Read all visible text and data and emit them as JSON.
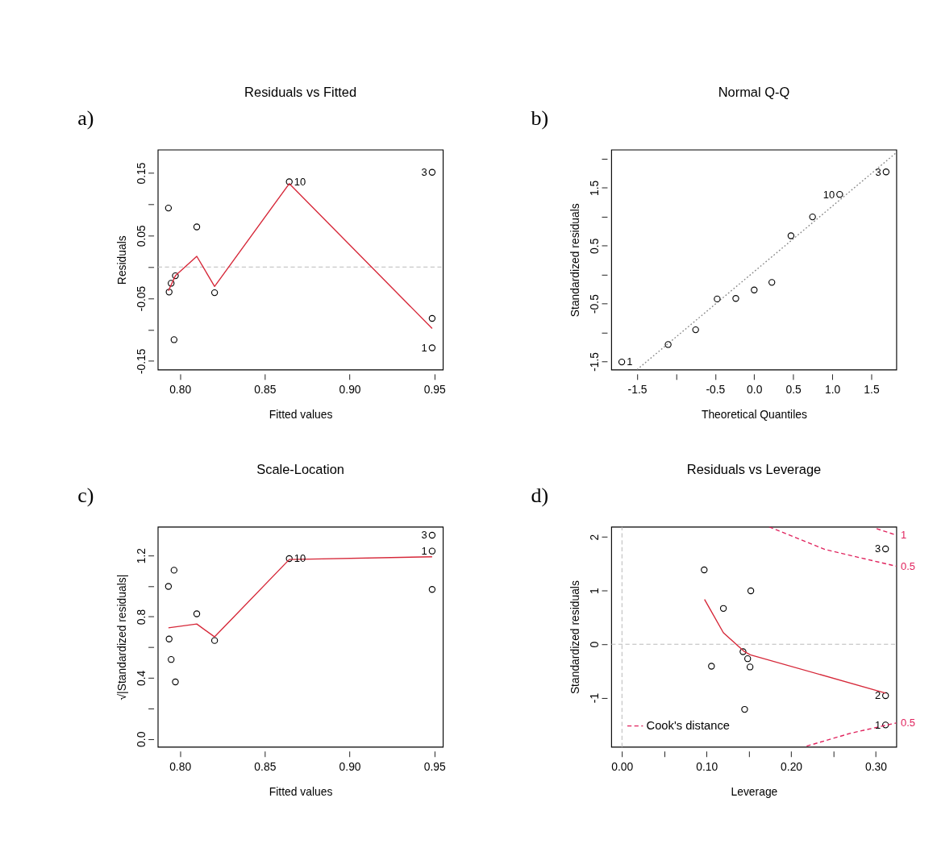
{
  "chart_data": [
    {
      "type": "scatter",
      "title": "Residuals vs Fitted",
      "xlabel": "Fitted values",
      "ylabel": "Residuals",
      "xlim": [
        0.787,
        0.955
      ],
      "ylim": [
        -0.164,
        0.187
      ],
      "xticks": [
        {
          "value": 0.8,
          "label": "0.80"
        },
        0.85,
        {
          "value": 0.9,
          "label": "0.90"
        },
        0.95
      ],
      "yticks": [
        -0.15,
        {
          "value": -0.1,
          "label": null
        },
        -0.05,
        {
          "value": 0,
          "label": null
        },
        0.05,
        {
          "value": 0.1,
          "label": null
        },
        0.15
      ],
      "series": [
        {
          "marker": "circle",
          "color": "#000000",
          "x": [
            0.7932,
            0.8099,
            0.8644,
            0.9486,
            0.7973,
            0.7948,
            0.7936,
            0.8204,
            0.9486,
            0.7965,
            0.9486
          ],
          "values": [
            0.094,
            0.064,
            0.136,
            0.151,
            -0.014,
            -0.026,
            -0.04,
            -0.041,
            -0.082,
            -0.116,
            -0.129
          ]
        },
        {
          "type": "line",
          "line_style": "solid",
          "color": "#d62839",
          "x": [
            0.7932,
            0.7973,
            0.8099,
            0.8204,
            0.8644,
            0.9486
          ],
          "values": [
            -0.038,
            -0.014,
            0.017,
            -0.031,
            0.133,
            -0.098
          ]
        }
      ],
      "ref_lines": [
        {
          "axis": "y",
          "value": 0,
          "color": "#bbbbbb",
          "line_style": "dashed"
        }
      ],
      "annotations": [
        "a)",
        {
          "text": "10",
          "x": 0.8644,
          "y": 0.136
        },
        {
          "text": "3",
          "x": 0.9486,
          "y": 0.151
        },
        {
          "text": "1",
          "x": 0.9486,
          "y": -0.129
        }
      ]
    },
    {
      "type": "scatter",
      "title": "Normal Q-Q",
      "xlabel": "Theoretical Quantiles",
      "ylabel": "Standardized residuals",
      "xlim": [
        -1.829,
        1.822
      ],
      "ylim": [
        -1.643,
        2.157
      ],
      "xticks": [
        -1.5,
        {
          "value": -1.0,
          "label": null
        },
        -0.5,
        {
          "value": 0.0,
          "label": "0.0"
        },
        0.5,
        {
          "value": 1.0,
          "label": "1.0"
        },
        1.5
      ],
      "yticks": [
        -1.5,
        {
          "value": -1.0,
          "label": null
        },
        -0.5,
        {
          "value": 0,
          "label": null
        },
        0.5,
        {
          "value": 1.0,
          "label": null
        },
        1.5,
        {
          "value": 2.0,
          "label": null
        }
      ],
      "series": [
        {
          "type": "line",
          "line_style": "dotted",
          "color": "#888888",
          "x": [
            -1.5,
            1.822
          ],
          "values": [
            -1.64,
            2.11
          ]
        },
        {
          "marker": "circle",
          "color": "#000000",
          "x": [
            -1.696,
            -1.102,
            -0.75,
            -0.474,
            -0.236,
            0.0,
            0.226,
            0.471,
            0.747,
            1.095,
            1.689
          ],
          "values": [
            -1.509,
            -1.207,
            -0.952,
            -0.42,
            -0.411,
            -0.264,
            -0.134,
            0.671,
            0.997,
            1.386,
            1.775
          ]
        }
      ],
      "annotations": [
        "b)",
        {
          "text": "1",
          "x": -1.696,
          "y": -1.509
        },
        {
          "text": "10",
          "x": 1.095,
          "y": 1.386
        },
        {
          "text": "3",
          "x": 1.689,
          "y": 1.775
        }
      ]
    },
    {
      "type": "scatter",
      "title": "Scale-Location",
      "xlabel": "Fitted values",
      "ylabel": "√|Standardized residuals|",
      "xlim": [
        0.787,
        0.955
      ],
      "ylim": [
        -0.052,
        1.387
      ],
      "xticks": [
        {
          "value": 0.8,
          "label": "0.80"
        },
        0.85,
        {
          "value": 0.9,
          "label": "0.90"
        },
        0.95
      ],
      "yticks": [
        {
          "value": 0.0,
          "label": "0.0"
        },
        {
          "value": 0.2,
          "label": null
        },
        0.4,
        {
          "value": 0.6,
          "label": null
        },
        0.8,
        {
          "value": 1.0,
          "label": null
        },
        1.2
      ],
      "series": [
        {
          "marker": "circle",
          "color": "#000000",
          "x": [
            0.9486,
            0.9486,
            0.8644,
            0.7965,
            0.7932,
            0.8099,
            0.7936,
            0.8204,
            0.7948,
            0.7973,
            0.9486
          ],
          "values": [
            1.333,
            1.229,
            1.18,
            1.104,
            0.998,
            0.819,
            0.654,
            0.644,
            0.52,
            0.373,
            0.978
          ]
        },
        {
          "type": "line",
          "line_style": "solid",
          "color": "#d62839",
          "x": [
            0.7932,
            0.8099,
            0.8204,
            0.8644,
            0.9486
          ],
          "values": [
            0.727,
            0.752,
            0.668,
            1.174,
            1.192
          ]
        }
      ],
      "annotations": [
        "c)",
        {
          "text": "3",
          "x": 0.9486,
          "y": 1.333
        },
        {
          "text": "1",
          "x": 0.9486,
          "y": 1.229
        },
        {
          "text": "10",
          "x": 0.8644,
          "y": 1.18
        }
      ]
    },
    {
      "type": "scatter",
      "title": "Residuals vs Leverage",
      "xlabel": "Leverage",
      "ylabel": "Standardized residuals",
      "xlim": [
        -0.0125,
        0.3245
      ],
      "ylim": [
        -1.918,
        2.188
      ],
      "xticks": [
        {
          "value": 0.0,
          "label": "0.00"
        },
        {
          "value": 0.05,
          "label": null
        },
        {
          "value": 0.1,
          "label": "0.10"
        },
        {
          "value": 0.15,
          "label": null
        },
        {
          "value": 0.2,
          "label": "0.20"
        },
        {
          "value": 0.25,
          "label": null
        },
        {
          "value": 0.3,
          "label": "0.30"
        }
      ],
      "yticks": [
        -1,
        0,
        1,
        2
      ],
      "legend": "bottom left",
      "series": [
        {
          "marker": "circle",
          "color": "#000000",
          "x": [
            0.0972,
            0.1523,
            0.1199,
            0.1431,
            0.1486,
            0.1514,
            0.1058,
            0.145,
            0.3116,
            0.3116,
            0.3116
          ],
          "values": [
            1.386,
            0.995,
            0.667,
            -0.14,
            -0.271,
            -0.425,
            -0.411,
            -1.217,
            1.778,
            -0.961,
            -1.507
          ]
        },
        {
          "type": "line",
          "line_style": "solid",
          "color": "#d62839",
          "x": [
            0.0976,
            0.1199,
            0.144,
            0.1517,
            0.3116
          ],
          "values": [
            0.836,
            0.213,
            -0.13,
            -0.198,
            -0.913
          ]
        },
        {
          "type": "line",
          "name": "Cook's distance",
          "line_style": "dashed",
          "color": "#e0245e",
          "x": [
            0.174,
            0.2398,
            0.3245
          ],
          "values": [
            2.188,
            1.768,
            1.454
          ]
        },
        {
          "type": "line",
          "line_style": "dashed",
          "color": "#e0245e",
          "x": [
            0.301,
            0.3245
          ],
          "values": [
            2.155,
            2.034
          ]
        },
        {
          "type": "line",
          "line_style": "dashed",
          "color": "#e0245e",
          "x": [
            0.2183,
            0.2703,
            0.3245
          ],
          "values": [
            -1.903,
            -1.662,
            -1.469
          ]
        }
      ],
      "ref_lines": [
        {
          "axis": "y",
          "value": 0,
          "color": "#bbbbbb",
          "line_style": "dashed"
        },
        {
          "axis": "x",
          "value": 0,
          "color": "#bbbbbb",
          "line_style": "dashed"
        }
      ],
      "annotations": [
        "d)",
        {
          "text": "3",
          "x": 0.3116,
          "y": 1.778
        },
        {
          "text": "2",
          "x": 0.3116,
          "y": -0.961
        },
        {
          "text": "1",
          "x": 0.3116,
          "y": -1.507
        },
        {
          "text": "1",
          "x": 0.3245,
          "y": 2.034
        },
        {
          "text": "0.5",
          "x": 0.3245,
          "y": 1.454
        },
        {
          "text": "0.5",
          "x": 0.3245,
          "y": -1.469
        }
      ]
    }
  ]
}
